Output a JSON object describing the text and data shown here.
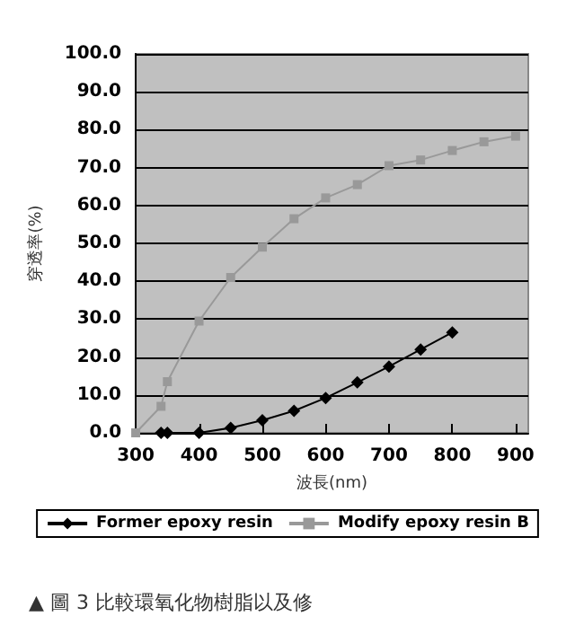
{
  "chart_data": {
    "type": "line",
    "xlabel": "波長(nm)",
    "ylabel": "穿透率(%)",
    "annotations": [
      "▲ 圖 3 比較環氧化物樹脂以及修"
    ],
    "series": [
      {
        "name": "Former epoxy resin",
        "color": "#000000",
        "marker": "diamond",
        "x": [
          340,
          350,
          400,
          450,
          500,
          550,
          600,
          650,
          700,
          750,
          800
        ],
        "values": [
          0,
          0,
          0,
          1.3,
          3.3,
          5.8,
          9.2,
          13.3,
          17.5,
          22,
          26.5
        ]
      },
      {
        "name": "Modify epoxy resin B",
        "color": "#999999",
        "marker": "square",
        "x": [
          300,
          340,
          350,
          400,
          450,
          500,
          550,
          600,
          650,
          700,
          750,
          800,
          850,
          900
        ],
        "values": [
          0,
          7,
          13.5,
          29.5,
          41,
          49,
          56.5,
          62,
          65.5,
          70.5,
          72,
          74.5,
          76.8,
          78.3
        ]
      }
    ],
    "xlim": [
      300,
      920
    ],
    "xticks": [
      300,
      400,
      500,
      600,
      700,
      800,
      900
    ],
    "ylim": [
      0,
      100
    ],
    "yticks": [
      {
        "value": 0,
        "label": "0.0"
      },
      {
        "value": 10,
        "label": "10.0"
      },
      {
        "value": 20,
        "label": "20.0"
      },
      {
        "value": 30,
        "label": "30.0"
      },
      {
        "value": 40,
        "label": "40.0"
      },
      {
        "value": 50,
        "label": "50.0"
      },
      {
        "value": 60,
        "label": "60.0"
      },
      {
        "value": 70,
        "label": "70.0"
      },
      {
        "value": 80,
        "label": "80.0"
      },
      {
        "value": 90,
        "label": "90.0"
      },
      {
        "value": 100,
        "label": "100.0"
      }
    ],
    "grid": "y",
    "legend": "bottom",
    "line_style": "solid"
  }
}
